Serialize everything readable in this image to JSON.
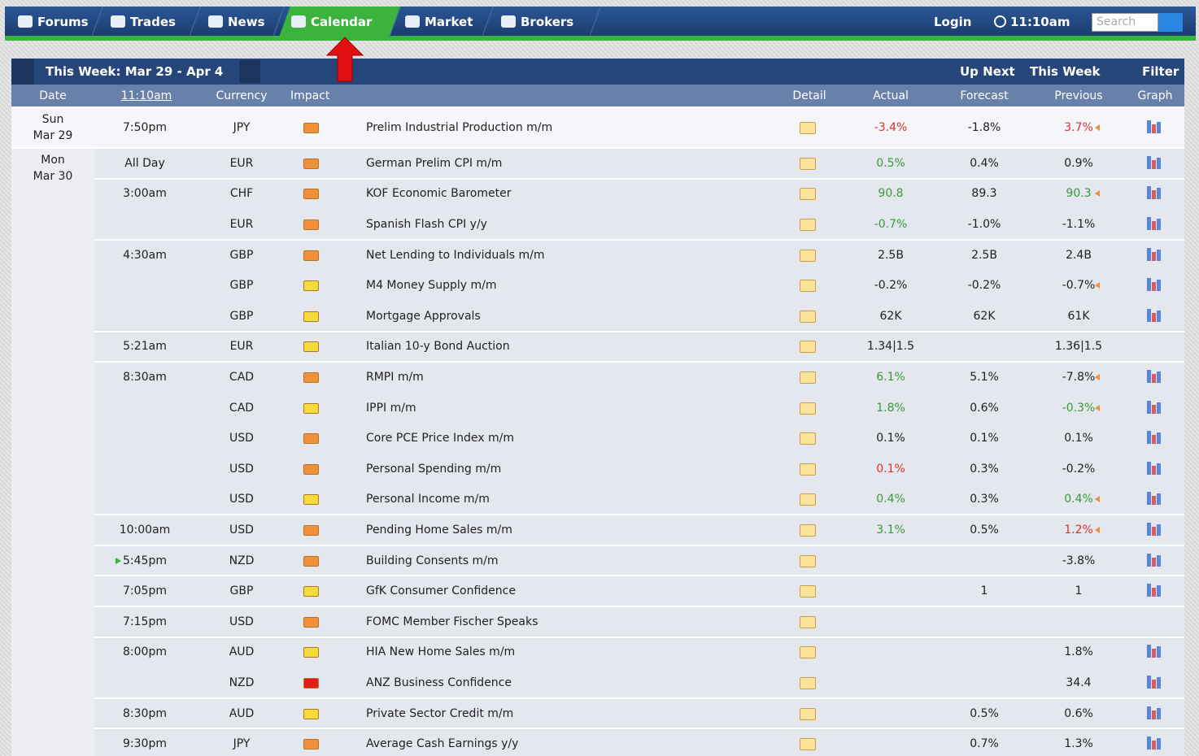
{
  "nav": {
    "items": [
      "Forums",
      "Trades",
      "News",
      "Calendar",
      "Market",
      "Brokers"
    ],
    "active": 3,
    "login": "Login",
    "time": "11:10am",
    "search": "Search"
  },
  "toolbar": {
    "week": "This Week: Mar 29 - Apr 4",
    "up_next": "Up Next",
    "this_week": "This Week",
    "filter": "Filter"
  },
  "table": {
    "headers": [
      "Date",
      "11:10am",
      "Currency",
      "Impact",
      "Detail",
      "Actual",
      "Forecast",
      "Previous",
      "Graph"
    ],
    "days": [
      {
        "day": "Sun",
        "date": "Mar 29",
        "events": [
          {
            "time": "7:50pm",
            "currency": "JPY",
            "impact_color": "#f0913a",
            "event": "Prelim Industrial Production m/m",
            "actual": "-3.4%",
            "actual_color": "#d9342b",
            "forecast": "-1.8%",
            "previous": "3.7%",
            "previous_color": "#d9342b",
            "revised": true,
            "graph": true
          }
        ]
      },
      {
        "day": "Mon",
        "date": "Mar 30",
        "events": [
          {
            "time": "All Day",
            "currency": "EUR",
            "impact_color": "#f0913a",
            "event": "German Prelim CPI m/m",
            "actual": "0.5%",
            "actual_color": "#3a9a3a",
            "forecast": "0.4%",
            "previous": "0.9%",
            "graph": true
          },
          {
            "time": "3:00am",
            "currency": "CHF",
            "impact_color": "#f0913a",
            "event": "KOF Economic Barometer",
            "actual": "90.8",
            "actual_color": "#3a9a3a",
            "forecast": "89.3",
            "previous": "90.3",
            "previous_color": "#3a9a3a",
            "revised": true,
            "graph": true
          },
          {
            "currency": "EUR",
            "impact_color": "#f0913a",
            "event": "Spanish Flash CPI y/y",
            "actual": "-0.7%",
            "actual_color": "#3a9a3a",
            "forecast": "-1.0%",
            "previous": "-1.1%",
            "graph": true
          },
          {
            "time": "4:30am",
            "currency": "GBP",
            "impact_color": "#f0913a",
            "event": "Net Lending to Individuals m/m",
            "actual": "2.5B",
            "forecast": "2.5B",
            "previous": "2.4B",
            "graph": true
          },
          {
            "currency": "GBP",
            "impact_color": "#f4dc3a",
            "event": "M4 Money Supply m/m",
            "actual": "-0.2%",
            "forecast": "-0.2%",
            "previous": "-0.7%",
            "revised": true,
            "graph": true
          },
          {
            "currency": "GBP",
            "impact_color": "#f4dc3a",
            "event": "Mortgage Approvals",
            "actual": "62K",
            "forecast": "62K",
            "previous": "61K",
            "graph": true
          },
          {
            "time": "5:21am",
            "currency": "EUR",
            "impact_color": "#f4dc3a",
            "event": "Italian 10-y Bond Auction",
            "actual": "1.34|1.5",
            "previous": "1.36|1.5",
            "graph": false
          },
          {
            "time": "8:30am",
            "currency": "CAD",
            "impact_color": "#f0913a",
            "event": "RMPI m/m",
            "actual": "6.1%",
            "actual_color": "#3a9a3a",
            "forecast": "5.1%",
            "previous": "-7.8%",
            "revised": true,
            "graph": true
          },
          {
            "currency": "CAD",
            "impact_color": "#f4dc3a",
            "event": "IPPI m/m",
            "actual": "1.8%",
            "actual_color": "#3a9a3a",
            "forecast": "0.6%",
            "previous": "-0.3%",
            "previous_color": "#3a9a3a",
            "revised": true,
            "graph": true
          },
          {
            "currency": "USD",
            "impact_color": "#f0913a",
            "event": "Core PCE Price Index m/m",
            "actual": "0.1%",
            "forecast": "0.1%",
            "previous": "0.1%",
            "graph": true
          },
          {
            "currency": "USD",
            "impact_color": "#f0913a",
            "event": "Personal Spending m/m",
            "actual": "0.1%",
            "actual_color": "#d9342b",
            "forecast": "0.3%",
            "previous": "-0.2%",
            "graph": true
          },
          {
            "currency": "USD",
            "impact_color": "#f4dc3a",
            "event": "Personal Income m/m",
            "actual": "0.4%",
            "actual_color": "#3a9a3a",
            "forecast": "0.3%",
            "previous": "0.4%",
            "previous_color": "#3a9a3a",
            "revised": true,
            "graph": true
          },
          {
            "time": "10:00am",
            "currency": "USD",
            "impact_color": "#f0913a",
            "event": "Pending Home Sales m/m",
            "actual": "3.1%",
            "actual_color": "#3a9a3a",
            "forecast": "0.5%",
            "previous": "1.2%",
            "previous_color": "#d9342b",
            "revised": true,
            "graph": true
          },
          {
            "time": "5:45pm",
            "upcoming": true,
            "currency": "NZD",
            "impact_color": "#f0913a",
            "event": "Building Consents m/m",
            "previous": "-3.8%",
            "graph": true
          },
          {
            "time": "7:05pm",
            "currency": "GBP",
            "impact_color": "#f4dc3a",
            "event": "GfK Consumer Confidence",
            "forecast": "1",
            "previous": "1",
            "graph": true
          },
          {
            "time": "7:15pm",
            "currency": "USD",
            "impact_color": "#f0913a",
            "event": "FOMC Member Fischer Speaks",
            "graph": false
          },
          {
            "time": "8:00pm",
            "currency": "AUD",
            "impact_color": "#f4dc3a",
            "event": "HIA New Home Sales m/m",
            "previous": "1.8%",
            "graph": true
          },
          {
            "currency": "NZD",
            "impact_color": "#e31b1b",
            "event": "ANZ Business Confidence",
            "previous": "34.4",
            "graph": true
          },
          {
            "time": "8:30pm",
            "currency": "AUD",
            "impact_color": "#f4dc3a",
            "event": "Private Sector Credit m/m",
            "forecast": "0.5%",
            "previous": "0.6%",
            "graph": true
          },
          {
            "time": "9:30pm",
            "currency": "JPY",
            "impact_color": "#f0913a",
            "event": "Average Cash Earnings y/y",
            "forecast": "0.7%",
            "previous": "1.3%",
            "graph": true
          }
        ]
      }
    ]
  }
}
